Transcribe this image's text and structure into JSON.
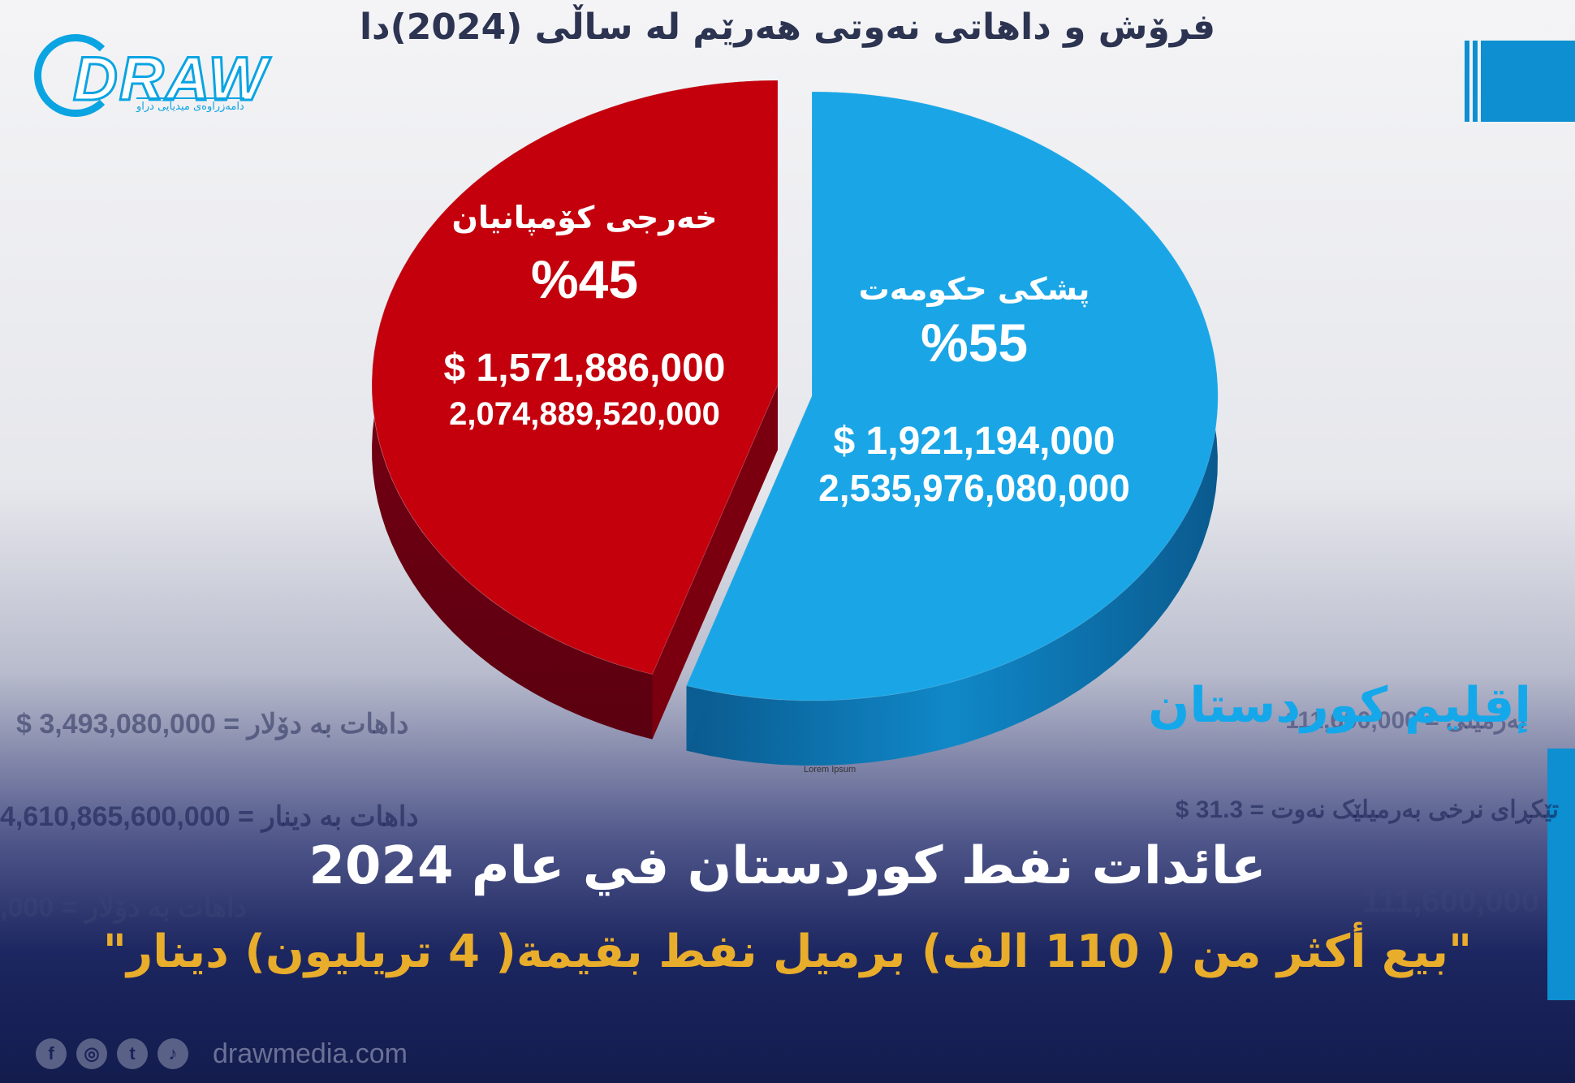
{
  "title": "فرۆش و داهاتی نەوتی هەرێم لە ساڵی (2024)دا",
  "logo": {
    "word": "DRAW",
    "tagline": "دامەزراوەی میدیایی دراو"
  },
  "colors": {
    "government": "#1aa6e6",
    "government_dark": "#0b6fa8",
    "companies": "#c3000c",
    "companies_dark": "#6e0010",
    "accent": "#14a8ea",
    "gold": "#e9ad2c"
  },
  "chart_data": {
    "type": "pie",
    "title": "فرۆش و داهاتی نەوتی هەرێم لە ساڵی (2024)دا",
    "slices": [
      {
        "label": "پشکی حکومەت",
        "percent_label": "%55",
        "value_percent": 55,
        "usd": "$ 1,921,194,000",
        "iqd": "2,535,976,080,000",
        "color": "#1aa6e6"
      },
      {
        "label": "خەرجی کۆمپانیان",
        "percent_label": "%45",
        "value_percent": 45,
        "usd": "$ 1,571,886,000",
        "iqd": "2,074,889,520,000",
        "color": "#c3000c"
      }
    ],
    "note": "Lorem Ipsum"
  },
  "background_text": {
    "revenue_usd": "$ 3,493,080,000  =  داهات بە دۆلار",
    "revenue_iqd": "4,610,865,600,000  =  داهات بە دینار",
    "avg_price": "$ 31.3 = تێکڕای نرخی بەرمیلێک نەوت",
    "barrels": "111,600,000",
    "revenue_usd_2": ",000  =  داهات بە دۆلار",
    "bg_barrels": "بەرمیلی = 111,600,000"
  },
  "region_label": "إقليم كوردستان",
  "headline": "عائدات نفط كوردستان في عام 2024",
  "subheadline": "\"بيع أكثر من ( 110 الف) برميل نفط بقيمة( 4 تريليون) دينار\"",
  "footer": {
    "icons": [
      "facebook-icon",
      "instagram-icon",
      "twitter-icon",
      "tiktok-icon"
    ],
    "glyphs": [
      "f",
      "◎",
      "t",
      "♪"
    ],
    "url": "drawmedia.com"
  }
}
